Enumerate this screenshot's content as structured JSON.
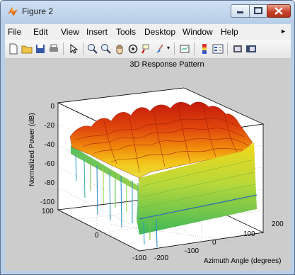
{
  "window": {
    "title": "Figure 2"
  },
  "menu": [
    "File",
    "Edit",
    "View",
    "Insert",
    "Tools",
    "Desktop",
    "Window",
    "Help"
  ],
  "plot": {
    "title": "3D Response Pattern",
    "zlabel": "Normalized Power (dB)",
    "xlabel": "Azimuth Angle (degrees)",
    "z_ticks": [
      "0",
      "-20",
      "-40",
      "-60",
      "-80",
      "-100"
    ],
    "x_ticks": [
      "-200",
      "-100",
      "0",
      "100",
      "200"
    ],
    "y_ticks": [
      "100",
      "0",
      "-100"
    ]
  },
  "colors": {
    "accent_red": "#c41a0a",
    "accent_green": "#3cb85a"
  },
  "chart_data": {
    "type": "surface",
    "title": "3D Response Pattern",
    "xlabel": "Azimuth Angle (degrees)",
    "ylabel": "",
    "zlabel": "Normalized Power (dB)",
    "xlim": [
      -200,
      200
    ],
    "ylim": [
      -100,
      100
    ],
    "zlim": [
      -100,
      0
    ],
    "grid": true
  }
}
